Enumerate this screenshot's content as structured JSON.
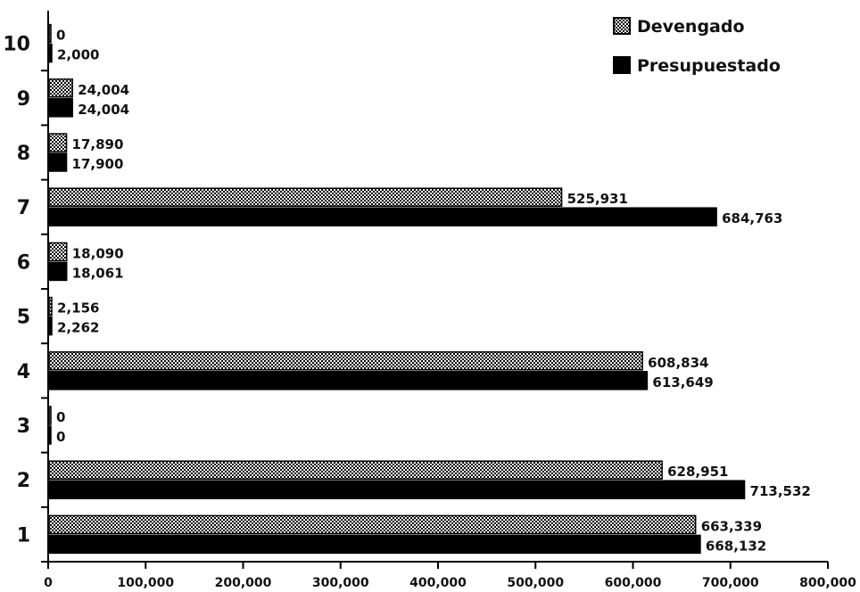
{
  "chart_data": {
    "type": "bar",
    "orientation": "horizontal",
    "categories": [
      "1",
      "2",
      "3",
      "4",
      "5",
      "6",
      "7",
      "8",
      "9",
      "10"
    ],
    "series": [
      {
        "name": "Devengado",
        "values": [
          663339,
          628951,
          0,
          608834,
          2156,
          18090,
          525931,
          17890,
          24004,
          0
        ],
        "labels": [
          "663,339",
          "628,951",
          "0",
          "608,834",
          "2,156",
          "18,090",
          "525,931",
          "17,890",
          "24,004",
          "0"
        ],
        "pattern": "dotted",
        "color": "#000000"
      },
      {
        "name": "Presupuestado",
        "values": [
          668132,
          713532,
          0,
          613649,
          2262,
          18061,
          684763,
          17900,
          24004,
          2000
        ],
        "labels": [
          "668,132",
          "713,532",
          "0",
          "613,649",
          "2,262",
          "18,061",
          "684,763",
          "17,900",
          "24,004",
          "2,000"
        ],
        "pattern": "solid",
        "color": "#000000"
      }
    ],
    "xlim": [
      0,
      800000
    ],
    "x_ticks": [
      "0",
      "100,000",
      "200,000",
      "300,000",
      "400,000",
      "500,000",
      "600,000",
      "700,000",
      "800,000"
    ],
    "legend_position": "top-right",
    "grid": false
  }
}
